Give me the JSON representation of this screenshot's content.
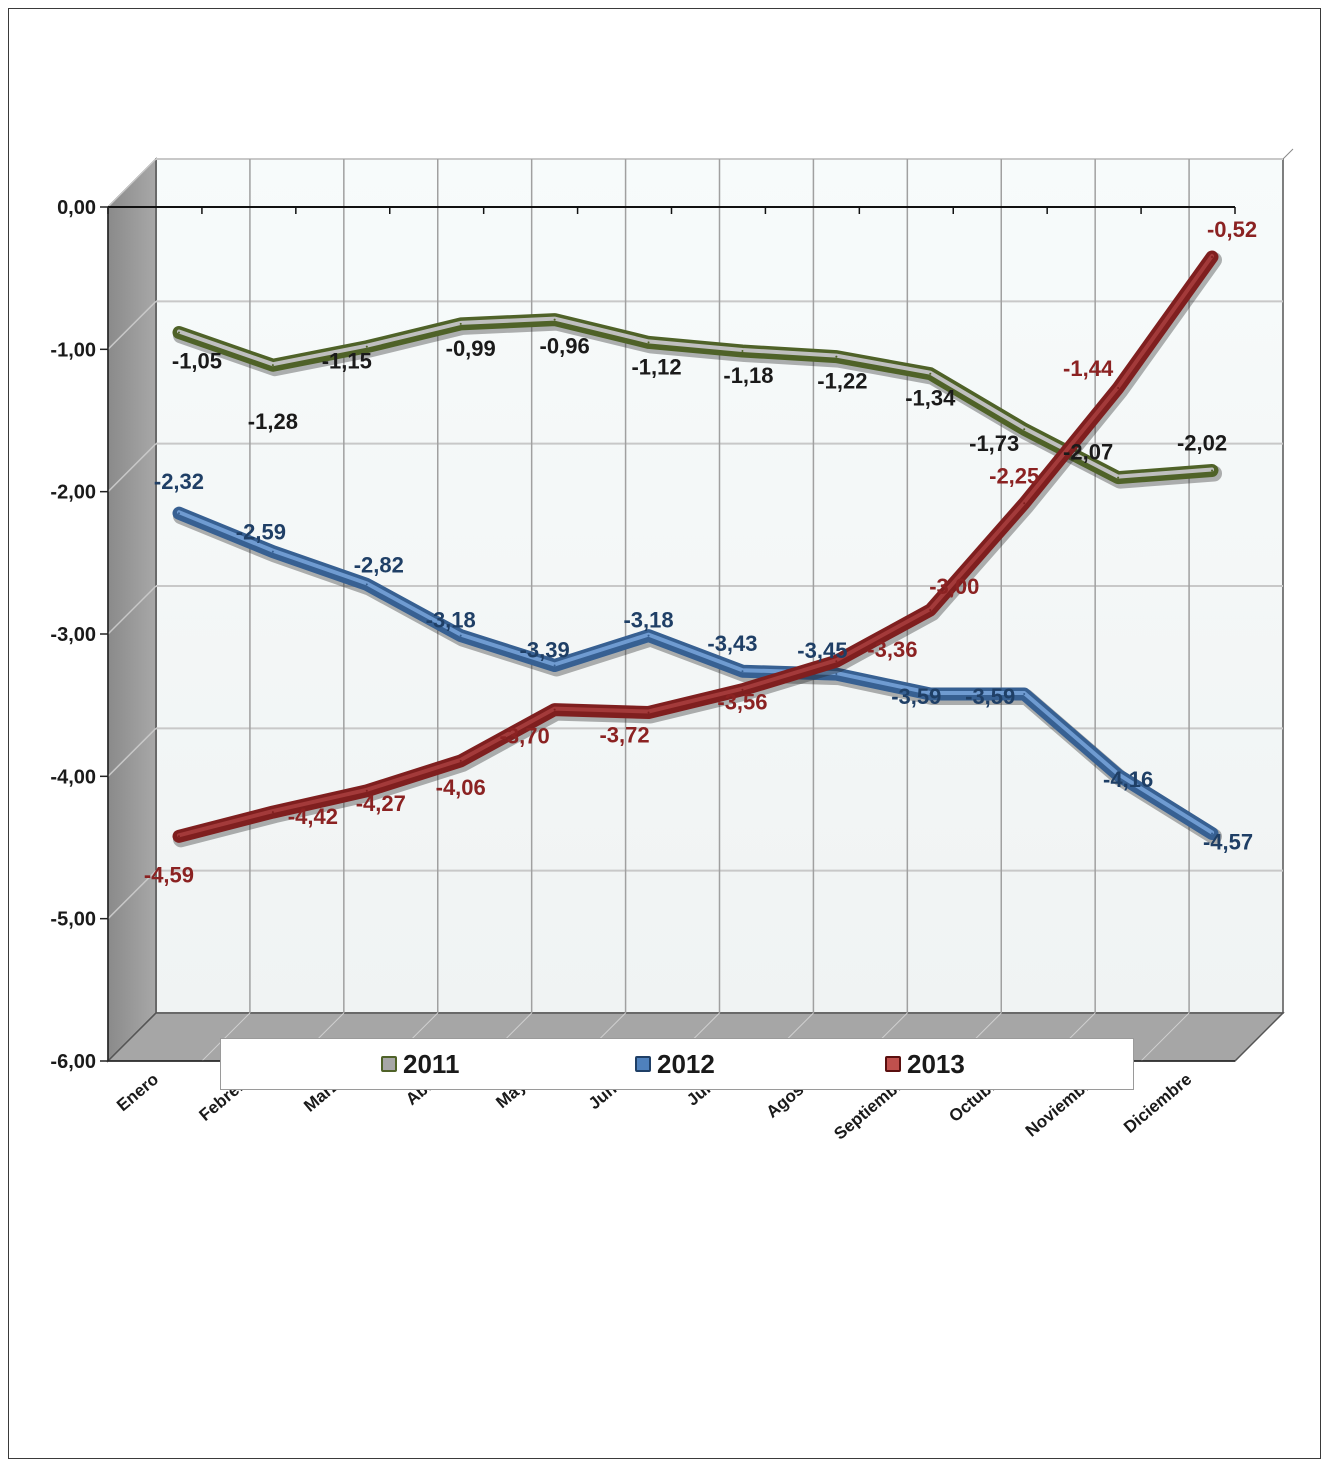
{
  "chart_data": {
    "type": "line",
    "title": "",
    "xlabel": "",
    "ylabel": "",
    "ylim": [
      -6,
      0
    ],
    "yticks": [
      0,
      -1,
      -2,
      -3,
      -4,
      -5,
      -6
    ],
    "ytick_labels": [
      "0,00",
      "-1,00",
      "-2,00",
      "-3,00",
      "-4,00",
      "-5,00",
      "-6,00"
    ],
    "categories": [
      "Enero",
      "Febrero",
      "Marzo",
      "Abril",
      "Mayo",
      "Junio",
      "Julio",
      "Agosto",
      "Septiembre",
      "Octubre",
      "Noviembre",
      "Diciembre"
    ],
    "grid": true,
    "legend_position": "bottom",
    "series": [
      {
        "name": "2011",
        "color": "#4f6228",
        "values": [
          -1.05,
          -1.28,
          -1.15,
          -0.99,
          -0.96,
          -1.12,
          -1.18,
          -1.22,
          -1.34,
          -1.73,
          -2.07,
          -2.02
        ],
        "labels": [
          "-1,05",
          "-1,28",
          "-1,15",
          "-0,99",
          "-0,96",
          "-1,12",
          "-1,18",
          "-1,22",
          "-1,34",
          "-1,73",
          "-2,07",
          "-2,02"
        ]
      },
      {
        "name": "2012",
        "color": "#376092",
        "values": [
          -2.32,
          -2.59,
          -2.82,
          -3.18,
          -3.39,
          -3.18,
          -3.43,
          -3.45,
          -3.59,
          -3.59,
          -4.16,
          -4.57
        ],
        "labels": [
          "-2,32",
          "-2,59",
          "-2,82",
          "-3,18",
          "-3,39",
          "-3,18",
          "-3,43",
          "-3,45",
          "-3,59",
          "-3,59",
          "-4,16",
          "-4,57"
        ]
      },
      {
        "name": "2013",
        "color": "#7f1f1f",
        "values": [
          -4.59,
          -4.42,
          -4.27,
          -4.06,
          -3.7,
          -3.72,
          -3.56,
          -3.36,
          -3.0,
          -2.25,
          -1.44,
          -0.52
        ],
        "labels": [
          "-4,59",
          "-4,42",
          "-4,27",
          "-4,06",
          "-3,70",
          "-3,72",
          "-3,56",
          "-3,36",
          "-3,00",
          "-2,25",
          "-1,44",
          "-0,52"
        ]
      }
    ]
  },
  "legend": {
    "items": [
      {
        "label": "2011",
        "color": "#a6a6a6",
        "border": "#4f6228"
      },
      {
        "label": "2012",
        "color": "#4f81bd",
        "border": "#1f3f66"
      },
      {
        "label": "2013",
        "color": "#c0504d",
        "border": "#5a0f0f"
      }
    ]
  }
}
